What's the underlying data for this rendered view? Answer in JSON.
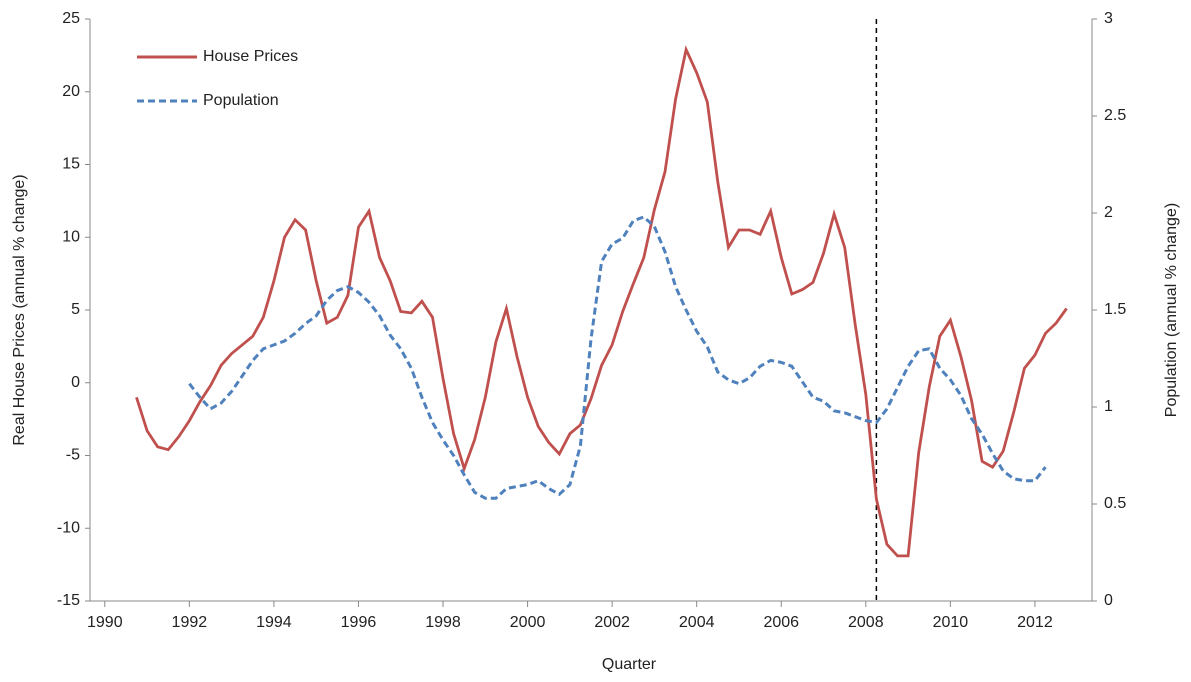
{
  "chart_data": {
    "type": "line",
    "xlabel": "Quarter",
    "ylabel": "Real House Prices (annual % change)",
    "y2label": "Population (annual % change)",
    "xlim": [
      1989.65,
      2013.35
    ],
    "xticks": [
      1990,
      1992,
      1994,
      1996,
      1998,
      2000,
      2002,
      2004,
      2006,
      2008,
      2010,
      2012
    ],
    "ylim": [
      -15,
      25
    ],
    "yticks": [
      -15,
      -10,
      -5,
      0,
      5,
      10,
      15,
      20,
      25
    ],
    "y2lim": [
      0,
      3
    ],
    "y2ticks": [
      0,
      0.5,
      1,
      1.5,
      2,
      2.5,
      3
    ],
    "vline": 2008.25,
    "legend": "upper left",
    "series": [
      {
        "name": "House Prices",
        "color": "#c0504d",
        "dash": false,
        "x": [
          1990.75,
          1991,
          1991.25,
          1991.5,
          1991.75,
          1992,
          1992.25,
          1992.5,
          1992.75,
          1993,
          1993.25,
          1993.5,
          1993.75,
          1994,
          1994.25,
          1994.5,
          1994.75,
          1995,
          1995.25,
          1995.5,
          1995.75,
          1996,
          1996.25,
          1996.5,
          1996.75,
          1997,
          1997.25,
          1997.5,
          1997.75,
          1998,
          1998.25,
          1998.5,
          1998.75,
          1999,
          1999.25,
          1999.5,
          1999.75,
          2000,
          2000.25,
          2000.5,
          2000.75,
          2001,
          2001.25,
          2001.5,
          2001.75,
          2002,
          2002.25,
          2002.5,
          2002.75,
          2003,
          2003.25,
          2003.5,
          2003.75,
          2004,
          2004.25,
          2004.5,
          2004.75,
          2005,
          2005.25,
          2005.5,
          2005.75,
          2006,
          2006.25,
          2006.5,
          2006.75,
          2007,
          2007.25,
          2007.5,
          2007.75,
          2008,
          2008.25,
          2008.5,
          2008.75,
          2009,
          2009.25,
          2009.5,
          2009.75,
          2010,
          2010.25,
          2010.5,
          2010.75,
          2011,
          2011.25,
          2011.5,
          2011.75,
          2012,
          2012.25,
          2012.5,
          2012.75
        ],
        "values": [
          -1,
          -3.3,
          -4.4,
          -4.6,
          -3.7,
          -2.6,
          -1.3,
          -0.2,
          1.2,
          2,
          2.6,
          3.2,
          4.5,
          7,
          10,
          11.2,
          10.5,
          7,
          4.1,
          4.5,
          6,
          10.7,
          11.8,
          8.6,
          7,
          4.9,
          4.8,
          5.6,
          4.5,
          0.3,
          -3.5,
          -5.9,
          -3.9,
          -1,
          2.8,
          5.1,
          1.8,
          -1,
          -3,
          -4.1,
          -4.9,
          -3.5,
          -2.9,
          -1.1,
          1.2,
          2.6,
          4.9,
          6.8,
          8.6,
          11.9,
          14.5,
          19.5,
          22.9,
          21.3,
          19.3,
          13.8,
          9.3,
          10.5,
          10.5,
          10.2,
          11.8,
          8.6,
          6.1,
          6.4,
          6.9,
          8.9,
          11.6,
          9.3,
          4,
          -0.8,
          -8,
          -11.1,
          -11.9,
          -11.9,
          -4.8,
          -0.3,
          3.2,
          4.3,
          1.8,
          -1.2,
          -5.4,
          -5.8,
          -4.7,
          -2,
          1,
          1.9,
          3.4,
          4.1,
          5.1
        ]
      },
      {
        "name": "Population",
        "color": "#4f81bd",
        "dash": true,
        "axis": "y2",
        "x": [
          1992,
          1992.25,
          1992.5,
          1992.75,
          1993,
          1993.25,
          1993.5,
          1993.75,
          1994,
          1994.25,
          1994.5,
          1994.75,
          1995,
          1995.25,
          1995.5,
          1995.75,
          1996,
          1996.25,
          1996.5,
          1996.75,
          1997,
          1997.25,
          1997.5,
          1997.75,
          1998,
          1998.25,
          1998.5,
          1998.75,
          1999,
          1999.25,
          1999.5,
          1999.75,
          2000,
          2000.25,
          2000.5,
          2000.75,
          2001,
          2001.25,
          2001.5,
          2001.75,
          2002,
          2002.25,
          2002.5,
          2002.75,
          2003,
          2003.25,
          2003.5,
          2003.75,
          2004,
          2004.25,
          2004.5,
          2004.75,
          2005,
          2005.25,
          2005.5,
          2005.75,
          2006,
          2006.25,
          2006.5,
          2006.75,
          2007,
          2007.25,
          2007.5,
          2007.75,
          2008,
          2008.25,
          2008.5,
          2008.75,
          2009,
          2009.25,
          2009.5,
          2009.75,
          2010,
          2010.25,
          2010.5,
          2010.75,
          2011,
          2011.25,
          2011.5,
          2011.75,
          2012,
          2012.25
        ],
        "values": [
          1.12,
          1.05,
          0.99,
          1.02,
          1.08,
          1.16,
          1.24,
          1.3,
          1.32,
          1.34,
          1.38,
          1.43,
          1.47,
          1.55,
          1.6,
          1.62,
          1.59,
          1.54,
          1.47,
          1.37,
          1.3,
          1.2,
          1.05,
          0.92,
          0.83,
          0.75,
          0.65,
          0.56,
          0.53,
          0.53,
          0.58,
          0.59,
          0.6,
          0.62,
          0.58,
          0.55,
          0.6,
          0.8,
          1.35,
          1.75,
          1.84,
          1.87,
          1.96,
          1.98,
          1.93,
          1.8,
          1.62,
          1.5,
          1.39,
          1.31,
          1.18,
          1.14,
          1.12,
          1.15,
          1.21,
          1.24,
          1.23,
          1.21,
          1.13,
          1.05,
          1.03,
          0.98,
          0.97,
          0.95,
          0.93,
          0.92,
          0.99,
          1.1,
          1.21,
          1.29,
          1.3,
          1.2,
          1.14,
          1.06,
          0.94,
          0.86,
          0.76,
          0.67,
          0.63,
          0.62,
          0.62,
          0.69
        ]
      }
    ]
  }
}
